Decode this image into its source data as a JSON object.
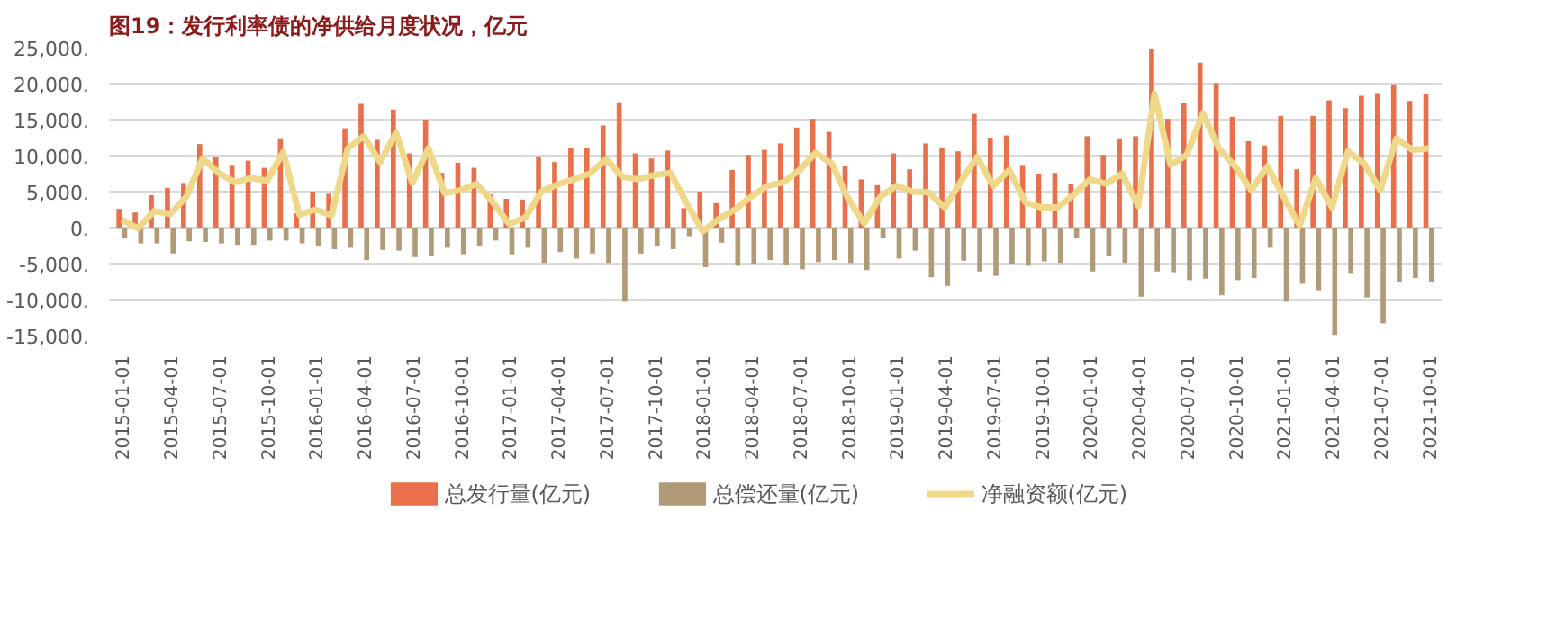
{
  "chart_data": {
    "type": "bar",
    "title": "图19：发行利率债的净供给月度状况，亿元",
    "categories": [
      "2015-01-01",
      null,
      null,
      "2015-04-01",
      null,
      null,
      "2015-07-01",
      null,
      null,
      "2015-10-01",
      null,
      null,
      "2016-01-01",
      null,
      null,
      "2016-04-01",
      null,
      null,
      "2016-07-01",
      null,
      null,
      "2016-10-01",
      null,
      null,
      "2017-01-01",
      null,
      null,
      "2017-04-01",
      null,
      null,
      "2017-07-01",
      null,
      null,
      "2017-10-01",
      null,
      null,
      "2018-01-01",
      null,
      null,
      "2018-04-01",
      null,
      null,
      "2018-07-01",
      null,
      null,
      "2018-10-01",
      null,
      null,
      "2019-01-01",
      null,
      null,
      "2019-04-01",
      null,
      null,
      "2019-07-01",
      null,
      null,
      "2019-10-01",
      null,
      null,
      "2020-01-01",
      null,
      null,
      "2020-04-01",
      null,
      null,
      "2020-07-01",
      null,
      null,
      "2020-10-01",
      null,
      null,
      "2021-01-01",
      null,
      null,
      "2021-04-01",
      null,
      null,
      "2021-07-01",
      null,
      null,
      "2021-10-01"
    ],
    "series": [
      {
        "name": "总发行量(亿元)",
        "color": "#e8704a",
        "values": [
          2600,
          2100,
          4500,
          5500,
          6200,
          11600,
          9800,
          8700,
          9300,
          8300,
          12400,
          2000,
          5000,
          4700,
          13800,
          17200,
          12200,
          16400,
          10300,
          15000,
          7600,
          9000,
          8300,
          4600,
          4000,
          3900,
          9900,
          9100,
          11000,
          11000,
          14200,
          17400,
          10300,
          9600,
          10700,
          2700,
          5000,
          3400,
          8000,
          10100,
          10800,
          11700,
          13900,
          15100,
          13300,
          8500,
          6700,
          5900,
          10300,
          8100,
          11700,
          11000,
          10600,
          15800,
          12500,
          12800,
          8700,
          7500,
          7600,
          6100,
          12700,
          10100,
          12400,
          12700,
          24800,
          15100,
          17300,
          22900,
          20100,
          15400,
          12000,
          11400,
          15500,
          8100,
          15500,
          17700,
          16600,
          18300,
          18700,
          19900,
          17600,
          18500
        ]
      },
      {
        "name": "总偿还量(亿元)",
        "color": "#b09a78",
        "values": [
          -1500,
          -2200,
          -2200,
          -3600,
          -1900,
          -2000,
          -2200,
          -2400,
          -2400,
          -1800,
          -1800,
          -2200,
          -2500,
          -3000,
          -2800,
          -4500,
          -3100,
          -3200,
          -4100,
          -4000,
          -2800,
          -3700,
          -2500,
          -1800,
          -3700,
          -2800,
          -4900,
          -3400,
          -4300,
          -3600,
          -4900,
          -10300,
          -3600,
          -2500,
          -3000,
          -1200,
          -5500,
          -2100,
          -5300,
          -5000,
          -4500,
          -5200,
          -5800,
          -4800,
          -4500,
          -4900,
          -5900,
          -1500,
          -4300,
          -3200,
          -6900,
          -8100,
          -4600,
          -6100,
          -6700,
          -5000,
          -5300,
          -4700,
          -4900,
          -1400,
          -6100,
          -3900,
          -4900,
          -9600,
          -6100,
          -6200,
          -7300,
          -7100,
          -9400,
          -7300,
          -7000,
          -2800,
          -10300,
          -7800,
          -8700,
          -14900,
          -6300,
          -9700,
          -13300,
          -7500,
          -7000,
          -7500
        ]
      },
      {
        "name": "净融资额(亿元)",
        "type": "line",
        "color": "#f0d88a",
        "values": [
          1100,
          -100,
          2300,
          1900,
          4300,
          9600,
          7600,
          6300,
          6900,
          6500,
          10500,
          1800,
          2500,
          1700,
          11000,
          12700,
          9100,
          13200,
          6200,
          11000,
          4800,
          5200,
          6100,
          3500,
          500,
          1400,
          5000,
          6000,
          6700,
          7500,
          9500,
          7100,
          6700,
          7300,
          7600,
          3400,
          -500,
          1200,
          2500,
          4300,
          5800,
          6300,
          8000,
          10400,
          8900,
          4100,
          600,
          4300,
          5800,
          5000,
          4900,
          2800,
          6400,
          9800,
          5800,
          8000,
          3500,
          2800,
          2800,
          4600,
          6700,
          6100,
          7500,
          3000,
          18600,
          8700,
          10100,
          15900,
          11000,
          8500,
          5200,
          8500,
          4300,
          300,
          6900,
          2800,
          10600,
          8900,
          5200,
          12400,
          10800,
          11000
        ]
      }
    ],
    "ylim": [
      -15000,
      25000
    ],
    "yticks": [
      {
        "value": -15000,
        "label": "-15,000."
      },
      {
        "value": -10000,
        "label": "-10,000."
      },
      {
        "value": -5000,
        "label": "-5,000."
      },
      {
        "value": 0,
        "label": "0."
      },
      {
        "value": 5000,
        "label": "5,000."
      },
      {
        "value": 10000,
        "label": "10,000."
      },
      {
        "value": 15000,
        "label": "15,000."
      },
      {
        "value": 20000,
        "label": "20,000."
      },
      {
        "value": 25000,
        "label": "25,000."
      }
    ],
    "grid": "y",
    "legend": "bottom"
  }
}
